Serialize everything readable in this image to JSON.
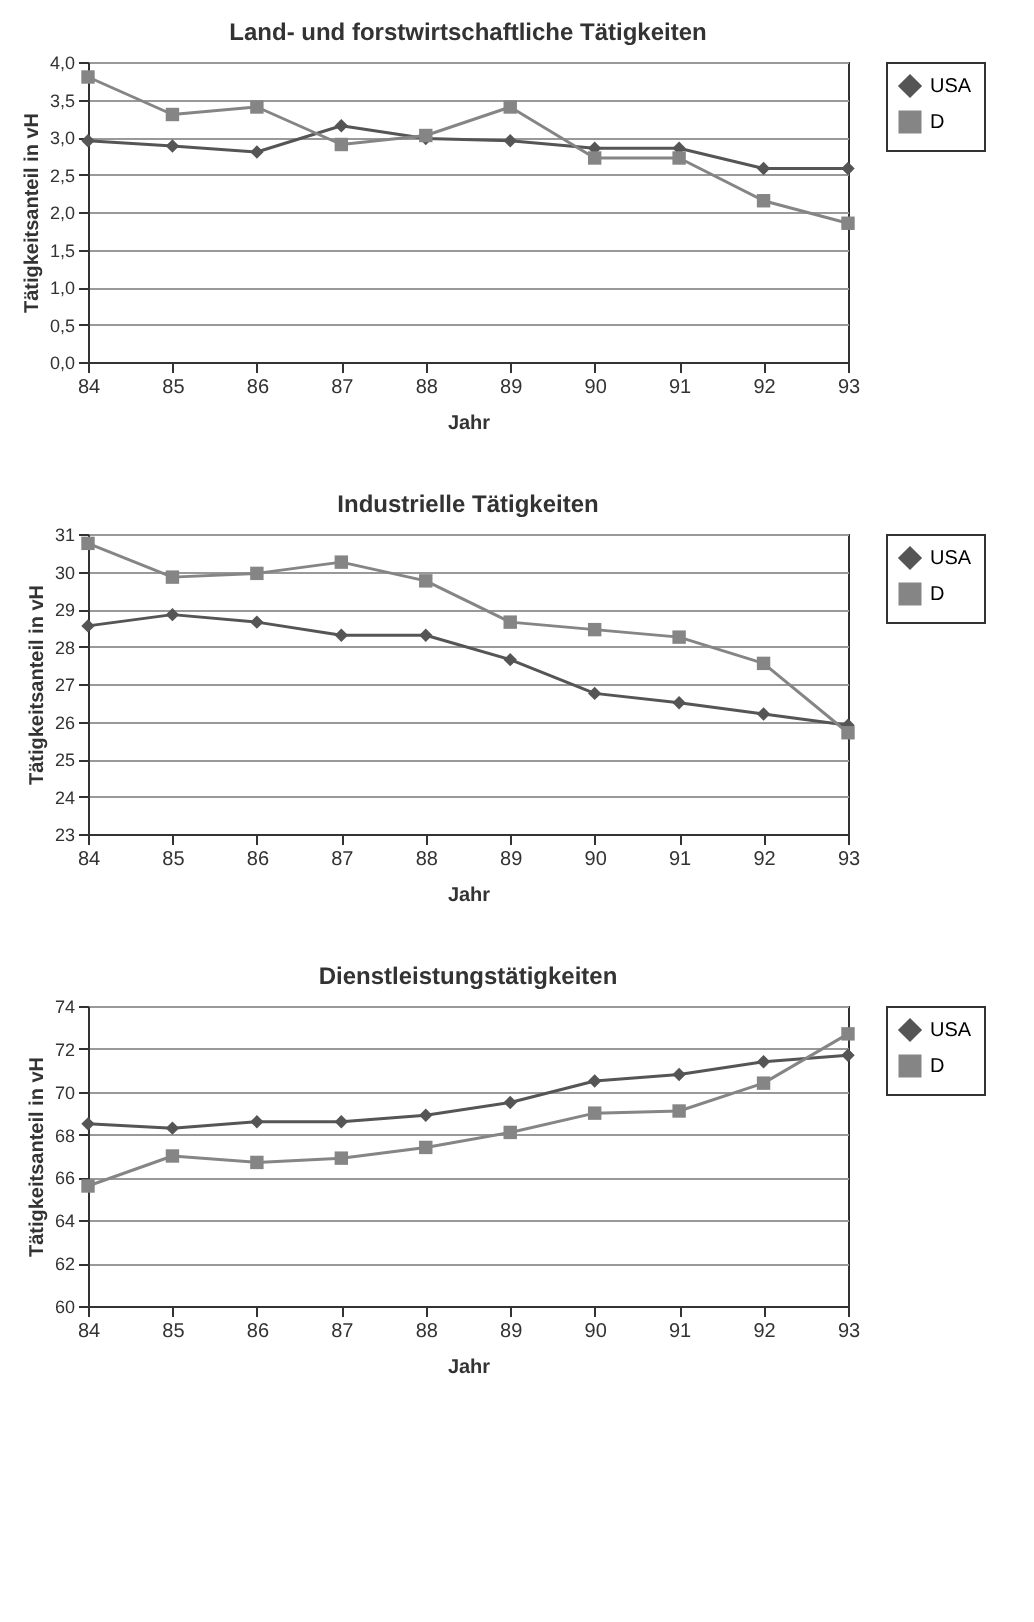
{
  "chart_data": [
    {
      "type": "line",
      "title": "Land- und forstwirtschaftliche Tätigkeiten",
      "xlabel": "Jahr",
      "ylabel": "Tätigkeitsanteil in vH",
      "categories": [
        "84",
        "85",
        "86",
        "87",
        "88",
        "89",
        "90",
        "91",
        "92",
        "93"
      ],
      "series": [
        {
          "name": "USA",
          "color": "#555555",
          "marker": "diamond",
          "values": [
            2.95,
            2.88,
            2.8,
            3.15,
            2.98,
            2.95,
            2.85,
            2.85,
            2.58,
            2.58
          ]
        },
        {
          "name": "D",
          "color": "#858585",
          "marker": "square",
          "values": [
            3.8,
            3.3,
            3.4,
            2.9,
            3.02,
            3.4,
            2.72,
            2.72,
            2.15,
            1.85
          ]
        }
      ],
      "ylim": [
        0,
        4
      ],
      "yticks": [
        {
          "value": 0,
          "label": "0,0"
        },
        {
          "value": 0.5,
          "label": "0,5"
        },
        {
          "value": 1,
          "label": "1,0"
        },
        {
          "value": 1.5,
          "label": "1,5"
        },
        {
          "value": 2,
          "label": "2,0"
        },
        {
          "value": 2.5,
          "label": "2,5"
        },
        {
          "value": 3,
          "label": "3,0"
        },
        {
          "value": 3.5,
          "label": "3,5"
        },
        {
          "value": 4,
          "label": "4,0"
        }
      ],
      "grid": "y",
      "legend": "right"
    },
    {
      "type": "line",
      "title": "Industrielle Tätigkeiten",
      "xlabel": "Jahr",
      "ylabel": "Tätigkeitsanteil in vH",
      "categories": [
        "84",
        "85",
        "86",
        "87",
        "88",
        "89",
        "90",
        "91",
        "92",
        "93"
      ],
      "series": [
        {
          "name": "USA",
          "color": "#555555",
          "marker": "diamond",
          "values": [
            28.55,
            28.85,
            28.65,
            28.3,
            28.3,
            27.65,
            26.75,
            26.5,
            26.2,
            25.9
          ]
        },
        {
          "name": "D",
          "color": "#858585",
          "marker": "square",
          "values": [
            30.75,
            29.85,
            29.95,
            30.25,
            29.75,
            28.65,
            28.45,
            28.25,
            27.55,
            25.7
          ]
        }
      ],
      "ylim": [
        23,
        31
      ],
      "yticks": [
        23,
        24,
        25,
        26,
        27,
        28,
        29,
        30,
        31
      ],
      "grid": "y",
      "legend": "right"
    },
    {
      "type": "line",
      "title": "Dienstleistungstätigkeiten",
      "xlabel": "Jahr",
      "ylabel": "Tätigkeitsanteil in vH",
      "categories": [
        "84",
        "85",
        "86",
        "87",
        "88",
        "89",
        "90",
        "91",
        "92",
        "93"
      ],
      "series": [
        {
          "name": "USA",
          "color": "#555555",
          "marker": "diamond",
          "values": [
            68.5,
            68.3,
            68.6,
            68.6,
            68.9,
            69.5,
            70.5,
            70.8,
            71.4,
            71.7
          ]
        },
        {
          "name": "D",
          "color": "#858585",
          "marker": "square",
          "values": [
            65.6,
            67,
            66.7,
            66.9,
            67.4,
            68.1,
            69,
            69.1,
            70.4,
            72.7
          ]
        }
      ],
      "ylim": [
        60,
        74
      ],
      "yticks": [
        60,
        62,
        64,
        66,
        68,
        70,
        72,
        74
      ],
      "grid": "y",
      "legend": "right"
    }
  ]
}
